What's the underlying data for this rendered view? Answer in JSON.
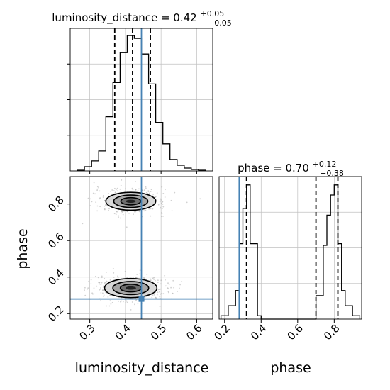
{
  "chart_data": {
    "type": "corner",
    "parameters": [
      "luminosity_distance",
      "phase"
    ],
    "truth": {
      "luminosity_distance": 0.445,
      "phase": 0.28
    },
    "colors": {
      "truth": "#4682b4",
      "hist": "#000000",
      "grid": "#c0c0c0"
    },
    "grid": true,
    "panels": {
      "luminosity_distance_hist": {
        "title": {
          "main": "luminosity_distance = 0.42",
          "sup": "+0.05",
          "sub": "−0.05"
        },
        "xlim": [
          0.245,
          0.645
        ],
        "ylim": [
          0,
          1.0
        ],
        "quantiles": [
          0.37,
          0.42,
          0.47
        ],
        "bin_edges": [
          0.265,
          0.285,
          0.305,
          0.325,
          0.345,
          0.365,
          0.385,
          0.405,
          0.425,
          0.445,
          0.465,
          0.485,
          0.505,
          0.525,
          0.545,
          0.565,
          0.585,
          0.605,
          0.625
        ],
        "counts": [
          0.005,
          0.03,
          0.07,
          0.14,
          0.38,
          0.62,
          0.83,
          0.95,
          0.93,
          0.82,
          0.61,
          0.34,
          0.19,
          0.08,
          0.04,
          0.02,
          0.01,
          0.005
        ]
      },
      "phase_hist": {
        "title": {
          "main": "phase = 0.70",
          "sup": "+0.12",
          "sub": "−0.38"
        },
        "xlim": [
          0.17,
          0.95
        ],
        "ylim": [
          0,
          0.85
        ],
        "quantiles": [
          0.32,
          0.7,
          0.82
        ],
        "bin_edges": [
          0.18,
          0.22,
          0.26,
          0.28,
          0.3,
          0.32,
          0.34,
          0.38,
          0.4,
          0.7,
          0.74,
          0.76,
          0.78,
          0.8,
          0.82,
          0.84,
          0.86,
          0.9,
          0.94
        ],
        "counts": [
          0.02,
          0.08,
          0.17,
          0.45,
          0.66,
          0.8,
          0.45,
          0.02,
          0.0,
          0.14,
          0.44,
          0.62,
          0.74,
          0.8,
          0.45,
          0.17,
          0.08,
          0.02
        ]
      },
      "joint": {
        "xlim": [
          0.245,
          0.645
        ],
        "ylim": [
          0.17,
          0.95
        ],
        "modes": [
          {
            "x": 0.415,
            "y": 0.815,
            "sx": 0.04,
            "sy": 0.028
          },
          {
            "x": 0.415,
            "y": 0.34,
            "sx": 0.042,
            "sy": 0.03
          }
        ],
        "contour_scale": [
          0.7,
          1.2,
          1.75
        ]
      }
    },
    "axes": {
      "joint_x": {
        "label": "luminosity_distance",
        "ticks": [
          0.3,
          0.4,
          0.5,
          0.6
        ],
        "tick_labels": [
          "0.3",
          "0.4",
          "0.5",
          "0.6"
        ]
      },
      "joint_y": {
        "label": "phase",
        "ticks": [
          0.2,
          0.4,
          0.6,
          0.8
        ],
        "tick_labels": [
          "0.2",
          "0.4",
          "0.6",
          "0.8"
        ]
      },
      "phase_x": {
        "label": "phase",
        "ticks": [
          0.2,
          0.4,
          0.6,
          0.8
        ],
        "tick_labels": [
          "0.2",
          "0.4",
          "0.6",
          "0.8"
        ]
      }
    }
  }
}
